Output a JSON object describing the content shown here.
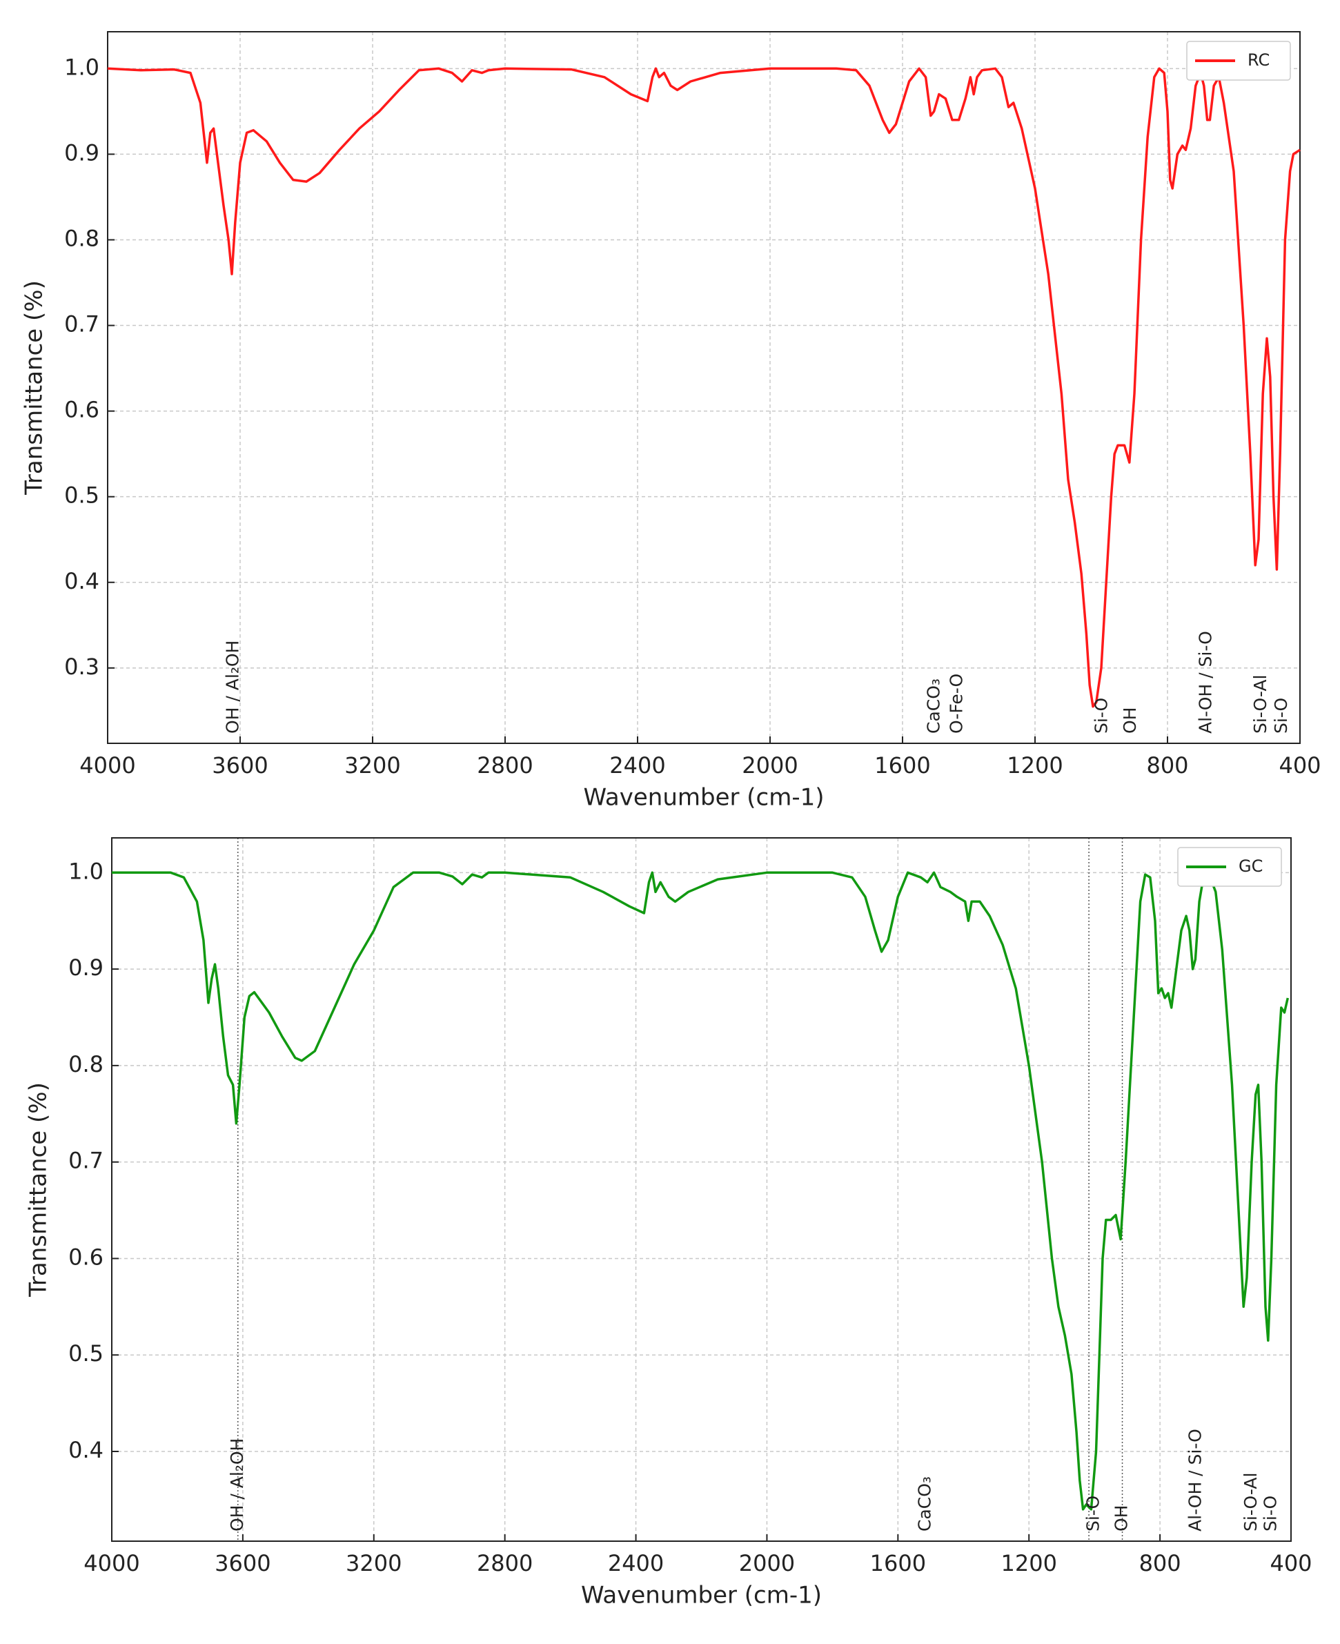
{
  "chart_data": [
    {
      "type": "line",
      "xlabel": "Wavenumber (cm-1)",
      "ylabel": "Transmittance (%)",
      "xlim": [
        4000,
        400
      ],
      "ylim": [
        0.212,
        1.043
      ],
      "xticks": [
        4000,
        3600,
        3200,
        2800,
        2400,
        2000,
        1600,
        1200,
        800,
        400
      ],
      "yticks": [
        0.3,
        0.4,
        0.5,
        0.6,
        0.7,
        0.8,
        0.9,
        {
          "value": 1,
          "label": "1.0"
        }
      ],
      "grid": true,
      "legend": "upper right",
      "x": [
        4000,
        3900,
        3800,
        3750,
        3720,
        3700,
        3690,
        3680,
        3670,
        3650,
        3635,
        3625,
        3615,
        3600,
        3580,
        3560,
        3520,
        3480,
        3440,
        3400,
        3360,
        3300,
        3240,
        3180,
        3120,
        3060,
        3000,
        2960,
        2930,
        2900,
        2870,
        2850,
        2800,
        2600,
        2500,
        2420,
        2370,
        2355,
        2345,
        2335,
        2320,
        2300,
        2280,
        2240,
        2150,
        2000,
        1800,
        1740,
        1700,
        1660,
        1640,
        1620,
        1580,
        1550,
        1530,
        1515,
        1505,
        1490,
        1470,
        1450,
        1430,
        1410,
        1395,
        1385,
        1375,
        1360,
        1320,
        1300,
        1280,
        1265,
        1240,
        1200,
        1160,
        1120,
        1100,
        1080,
        1060,
        1045,
        1035,
        1025,
        1015,
        1000,
        985,
        970,
        960,
        950,
        930,
        915,
        900,
        880,
        860,
        840,
        825,
        810,
        800,
        792,
        785,
        770,
        755,
        745,
        730,
        715,
        700,
        690,
        680,
        672,
        660,
        645,
        630,
        600,
        570,
        550,
        535,
        525,
        512,
        500,
        490,
        480,
        470,
        460,
        445,
        430,
        420,
        400
      ],
      "series": [
        {
          "name": "RC",
          "color": "#ff1a1a",
          "values": [
            1.0,
            0.998,
            0.999,
            0.995,
            0.96,
            0.89,
            0.925,
            0.93,
            0.9,
            0.84,
            0.8,
            0.76,
            0.82,
            0.89,
            0.925,
            0.928,
            0.915,
            0.89,
            0.87,
            0.868,
            0.878,
            0.905,
            0.93,
            0.95,
            0.975,
            0.998,
            1.0,
            0.995,
            0.985,
            0.998,
            0.995,
            0.998,
            1.0,
            0.999,
            0.99,
            0.97,
            0.962,
            0.99,
            1.0,
            0.99,
            0.995,
            0.98,
            0.975,
            0.985,
            0.995,
            1.0,
            1.0,
            0.998,
            0.98,
            0.94,
            0.925,
            0.935,
            0.985,
            1.0,
            0.99,
            0.945,
            0.95,
            0.97,
            0.965,
            0.94,
            0.94,
            0.965,
            0.99,
            0.97,
            0.99,
            0.998,
            1.0,
            0.99,
            0.955,
            0.96,
            0.93,
            0.86,
            0.76,
            0.62,
            0.52,
            0.47,
            0.41,
            0.34,
            0.28,
            0.255,
            0.26,
            0.3,
            0.4,
            0.5,
            0.55,
            0.56,
            0.56,
            0.54,
            0.62,
            0.8,
            0.92,
            0.99,
            1.0,
            0.995,
            0.95,
            0.87,
            0.86,
            0.9,
            0.91,
            0.905,
            0.93,
            0.98,
            0.995,
            0.98,
            0.94,
            0.94,
            0.98,
            0.99,
            0.96,
            0.88,
            0.7,
            0.55,
            0.42,
            0.45,
            0.62,
            0.685,
            0.64,
            0.5,
            0.415,
            0.55,
            0.8,
            0.88,
            0.9,
            0.905
          ]
        }
      ],
      "annotations": [
        {
          "text": "OH / Al₂OH",
          "x": 3620
        },
        {
          "text": "CaCO₃",
          "x": 1503
        },
        {
          "text": "O-Fe-O",
          "x": 1434
        },
        {
          "text": "Si-O",
          "x": 997
        },
        {
          "text": "OH",
          "x": 910
        },
        {
          "text": "Al-OH / Si-O",
          "x": 682
        },
        {
          "text": "Si-O-Al",
          "x": 517
        },
        {
          "text": "Si-O",
          "x": 454
        }
      ]
    },
    {
      "type": "line",
      "xlabel": "Wavenumber (cm-1)",
      "ylabel": "Transmittance (%)",
      "xlim": [
        4000,
        400
      ],
      "ylim": [
        0.307,
        1.036
      ],
      "xticks": [
        4000,
        3600,
        3200,
        2800,
        2400,
        2000,
        1600,
        1200,
        800,
        400
      ],
      "yticks": [
        0.4,
        0.5,
        0.6,
        0.7,
        0.8,
        0.9,
        {
          "value": 1,
          "label": "1.0"
        }
      ],
      "grid": true,
      "legend": "upper right",
      "x": [
        4000,
        3900,
        3820,
        3780,
        3740,
        3720,
        3705,
        3695,
        3685,
        3675,
        3660,
        3645,
        3630,
        3620,
        3610,
        3595,
        3580,
        3565,
        3520,
        3480,
        3440,
        3420,
        3380,
        3320,
        3260,
        3200,
        3140,
        3080,
        3000,
        2960,
        2930,
        2900,
        2870,
        2850,
        2800,
        2600,
        2500,
        2420,
        2375,
        2360,
        2350,
        2340,
        2325,
        2300,
        2280,
        2240,
        2150,
        2000,
        1800,
        1740,
        1700,
        1670,
        1650,
        1630,
        1600,
        1570,
        1530,
        1510,
        1490,
        1470,
        1440,
        1420,
        1395,
        1385,
        1375,
        1350,
        1320,
        1280,
        1240,
        1200,
        1160,
        1130,
        1110,
        1090,
        1070,
        1055,
        1045,
        1035,
        1025,
        1010,
        995,
        985,
        975,
        965,
        950,
        935,
        920,
        905,
        880,
        860,
        845,
        830,
        815,
        805,
        795,
        785,
        775,
        765,
        750,
        735,
        720,
        710,
        700,
        692,
        680,
        665,
        650,
        630,
        610,
        580,
        560,
        545,
        535,
        520,
        508,
        500,
        490,
        478,
        470,
        460,
        445,
        430,
        420,
        410
      ],
      "series": [
        {
          "name": "GC",
          "color": "#119911",
          "values": [
            1.0,
            1.0,
            1.0,
            0.995,
            0.97,
            0.93,
            0.865,
            0.89,
            0.905,
            0.88,
            0.83,
            0.79,
            0.78,
            0.74,
            0.78,
            0.85,
            0.872,
            0.876,
            0.855,
            0.83,
            0.808,
            0.805,
            0.815,
            0.86,
            0.905,
            0.94,
            0.985,
            1.0,
            1.0,
            0.996,
            0.988,
            0.998,
            0.995,
            1.0,
            1.0,
            0.995,
            0.98,
            0.965,
            0.958,
            0.99,
            1.0,
            0.98,
            0.99,
            0.975,
            0.97,
            0.98,
            0.993,
            1.0,
            1.0,
            0.995,
            0.975,
            0.94,
            0.918,
            0.93,
            0.975,
            1.0,
            0.995,
            0.99,
            1.0,
            0.985,
            0.98,
            0.975,
            0.97,
            0.95,
            0.97,
            0.97,
            0.955,
            0.925,
            0.88,
            0.8,
            0.7,
            0.6,
            0.55,
            0.52,
            0.48,
            0.42,
            0.37,
            0.34,
            0.345,
            0.34,
            0.4,
            0.5,
            0.6,
            0.64,
            0.64,
            0.645,
            0.62,
            0.7,
            0.85,
            0.97,
            0.998,
            0.995,
            0.95,
            0.875,
            0.88,
            0.87,
            0.875,
            0.86,
            0.9,
            0.94,
            0.955,
            0.94,
            0.9,
            0.91,
            0.97,
            1.0,
            0.998,
            0.98,
            0.92,
            0.78,
            0.65,
            0.55,
            0.58,
            0.7,
            0.77,
            0.78,
            0.7,
            0.55,
            0.515,
            0.6,
            0.78,
            0.86,
            0.855,
            0.87
          ]
        }
      ],
      "vlines": [
        3615,
        1017,
        915
      ],
      "annotations": [
        {
          "text": "OH / Al₂OH",
          "x": 3615
        },
        {
          "text": "CaCO₃",
          "x": 1515
        },
        {
          "text": "Si-O",
          "x": 1001
        },
        {
          "text": "OH",
          "x": 915
        },
        {
          "text": "Al-OH / Si-O",
          "x": 690
        },
        {
          "text": "Si-O-Al",
          "x": 520
        },
        {
          "text": "Si-O",
          "x": 460
        }
      ]
    }
  ]
}
